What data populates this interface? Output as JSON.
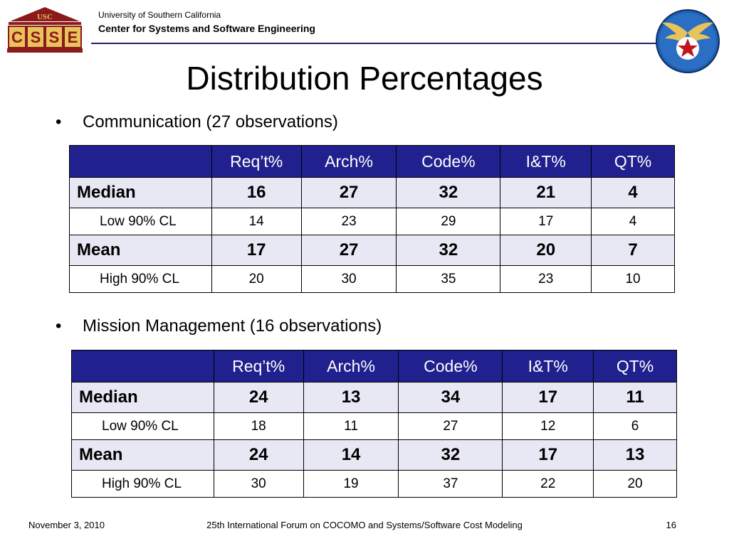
{
  "header": {
    "logo_text_top": "USC",
    "logo_letters": [
      "C",
      "S",
      "S",
      "E"
    ],
    "university": "University of Southern California",
    "center": "Center for Systems and Software Engineering"
  },
  "title": "Distribution Percentages",
  "sections": [
    {
      "bullet": "Communication (27 observations)",
      "columns": [
        "",
        "Req’t%",
        "Arch%",
        "Code%",
        "I&T%",
        "QT%"
      ],
      "rows": [
        {
          "label": "Median",
          "values": [
            "16",
            "27",
            "32",
            "21",
            "4"
          ]
        },
        {
          "label": "Low 90% CL",
          "values": [
            "14",
            "23",
            "29",
            "17",
            "4"
          ]
        },
        {
          "label": "Mean",
          "values": [
            "17",
            "27",
            "32",
            "20",
            "7"
          ]
        },
        {
          "label": "High 90% CL",
          "values": [
            "20",
            "30",
            "35",
            "23",
            "10"
          ]
        }
      ]
    },
    {
      "bullet": "Mission Management (16 observations)",
      "columns": [
        "",
        "Req’t%",
        "Arch%",
        "Code%",
        "I&T%",
        "QT%"
      ],
      "rows": [
        {
          "label": "Median",
          "values": [
            "24",
            "13",
            "34",
            "17",
            "11"
          ]
        },
        {
          "label": "Low 90% CL",
          "values": [
            "18",
            "11",
            "27",
            "12",
            "6"
          ]
        },
        {
          "label": "Mean",
          "values": [
            "24",
            "14",
            "32",
            "17",
            "13"
          ]
        },
        {
          "label": "High 90% CL",
          "values": [
            "30",
            "19",
            "37",
            "22",
            "20"
          ]
        }
      ]
    }
  ],
  "footer": {
    "date": "November 3, 2010",
    "event": "25th International Forum on COCOMO and Systems/Software Cost Modeling",
    "page": "16"
  },
  "colors": {
    "table_header": "#20208e",
    "bold_row": "#e8e8f5",
    "logo_maroon": "#8b1a1a",
    "logo_gold": "#e8c25a",
    "emblem_blue": "#1f5fb0"
  },
  "icons": [
    "csse-logo-icon",
    "air-force-emblem-icon"
  ]
}
